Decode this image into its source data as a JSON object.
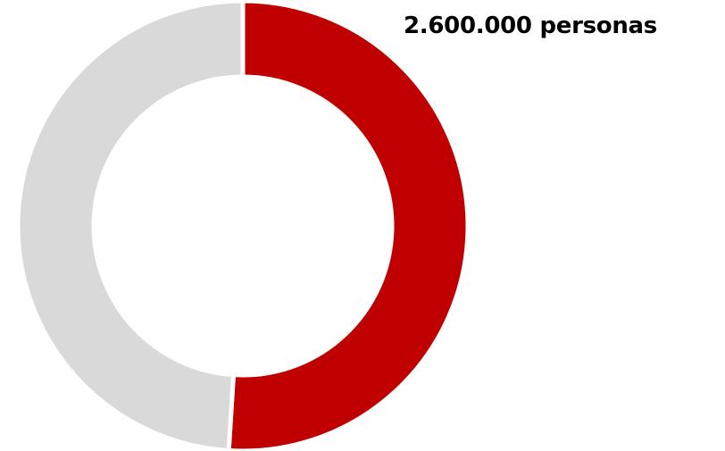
{
  "chart_data": {
    "type": "pie",
    "style": "donut",
    "slices": [
      {
        "value": 0.51,
        "color": "#c00000"
      },
      {
        "value": 0.49,
        "color": "#d9d9d9"
      }
    ],
    "annotations": [
      "2.600.000 personas"
    ],
    "legend": "none"
  }
}
